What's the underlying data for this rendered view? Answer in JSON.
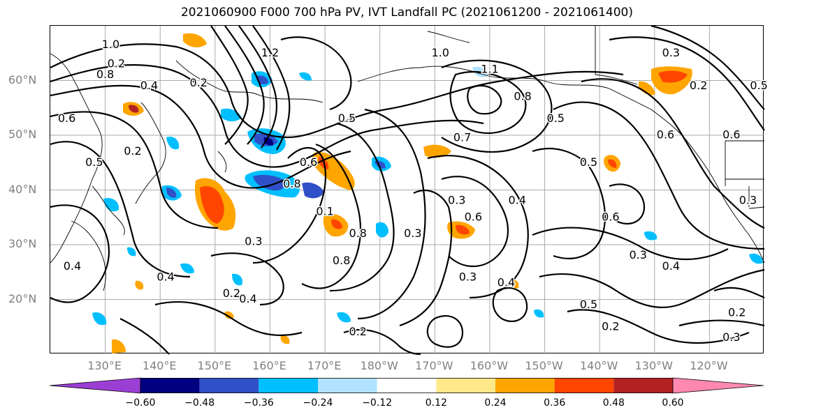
{
  "title": "2021060900 F000 700 hPa PV, IVT Landfall PC (2021061200 - 2021061400)",
  "lat_labels": [
    {
      "text": "60°N",
      "lat": 60
    },
    {
      "text": "50°N",
      "lat": 50
    },
    {
      "text": "40°N",
      "lat": 40
    },
    {
      "text": "30°N",
      "lat": 30
    },
    {
      "text": "20°N",
      "lat": 20
    }
  ],
  "lon_labels": [
    {
      "text": "130°E",
      "lon": 130
    },
    {
      "text": "140°E",
      "lon": 140
    },
    {
      "text": "150°E",
      "lon": 150
    },
    {
      "text": "160°E",
      "lon": 160
    },
    {
      "text": "170°E",
      "lon": 170
    },
    {
      "text": "180°W",
      "lon": 180
    },
    {
      "text": "170°W",
      "lon": 190
    },
    {
      "text": "160°W",
      "lon": 200
    },
    {
      "text": "150°W",
      "lon": 210
    },
    {
      "text": "140°W",
      "lon": 220
    },
    {
      "text": "130°W",
      "lon": 230
    },
    {
      "text": "120°W",
      "lon": 240
    }
  ],
  "map_extent": {
    "lon_min": 120,
    "lon_max": 250,
    "lat_min": 10,
    "lat_max": 70
  },
  "colorbar": {
    "colors": [
      "#9b3fd4",
      "#000080",
      "#3050c8",
      "#00bfff",
      "#b0e2ff",
      "#ffffff",
      "#ffe88a",
      "#ffa500",
      "#ff4500",
      "#b22222",
      "#ff88b0"
    ],
    "ticks": [
      "−0.60",
      "−0.48",
      "−0.36",
      "−0.24",
      "−0.12",
      "0.12",
      "0.24",
      "0.36",
      "0.48",
      "0.60"
    ]
  },
  "contour_labels": [
    {
      "text": "1.0",
      "lon": 131,
      "lat": 66.5
    },
    {
      "text": "0.2",
      "lon": 132,
      "lat": 63
    },
    {
      "text": "0.8",
      "lon": 130,
      "lat": 61
    },
    {
      "text": "0.4",
      "lon": 138,
      "lat": 59
    },
    {
      "text": "0.6",
      "lon": 123,
      "lat": 53
    },
    {
      "text": "0.5",
      "lon": 128,
      "lat": 45
    },
    {
      "text": "0.2",
      "lon": 135,
      "lat": 47
    },
    {
      "text": "0.2",
      "lon": 147,
      "lat": 59.5
    },
    {
      "text": "1.2",
      "lon": 160,
      "lat": 65
    },
    {
      "text": "0.5",
      "lon": 174,
      "lat": 53
    },
    {
      "text": "0.8",
      "lon": 164,
      "lat": 41
    },
    {
      "text": "0.6",
      "lon": 167,
      "lat": 45
    },
    {
      "text": "0.1",
      "lon": 170,
      "lat": 36
    },
    {
      "text": "0.8",
      "lon": 176,
      "lat": 32
    },
    {
      "text": "0.3",
      "lon": 157,
      "lat": 30.5
    },
    {
      "text": "0.8",
      "lon": 173,
      "lat": 27
    },
    {
      "text": "0.2",
      "lon": 153,
      "lat": 21
    },
    {
      "text": "0.4",
      "lon": 156,
      "lat": 20
    },
    {
      "text": "0.4",
      "lon": 124,
      "lat": 26
    },
    {
      "text": "0.4",
      "lon": 141,
      "lat": 24
    },
    {
      "text": "0.2",
      "lon": 176,
      "lat": 14
    },
    {
      "text": "1.0",
      "lon": 191,
      "lat": 65
    },
    {
      "text": "0.7",
      "lon": 195,
      "lat": 49.5
    },
    {
      "text": "1.1",
      "lon": 200,
      "lat": 62
    },
    {
      "text": "0.8",
      "lon": 206,
      "lat": 57
    },
    {
      "text": "0.3",
      "lon": 194,
      "lat": 38
    },
    {
      "text": "0.6",
      "lon": 197,
      "lat": 35
    },
    {
      "text": "0.3",
      "lon": 186,
      "lat": 32
    },
    {
      "text": "0.3",
      "lon": 196,
      "lat": 24
    },
    {
      "text": "0.4",
      "lon": 203,
      "lat": 23
    },
    {
      "text": "0.5",
      "lon": 212,
      "lat": 53
    },
    {
      "text": "0.4",
      "lon": 205,
      "lat": 38
    },
    {
      "text": "0.6",
      "lon": 222,
      "lat": 35
    },
    {
      "text": "0.3",
      "lon": 233,
      "lat": 65
    },
    {
      "text": "0.2",
      "lon": 238,
      "lat": 59
    },
    {
      "text": "0.5",
      "lon": 218,
      "lat": 45
    },
    {
      "text": "0.6",
      "lon": 232,
      "lat": 50
    },
    {
      "text": "0.3",
      "lon": 247,
      "lat": 38
    },
    {
      "text": "0.3",
      "lon": 227,
      "lat": 28
    },
    {
      "text": "0.4",
      "lon": 233,
      "lat": 26
    },
    {
      "text": "0.5",
      "lon": 218,
      "lat": 19
    },
    {
      "text": "0.2",
      "lon": 222,
      "lat": 15
    },
    {
      "text": "0.2",
      "lon": 245,
      "lat": 17.5
    },
    {
      "text": "0.3",
      "lon": 244,
      "lat": 13
    },
    {
      "text": "0.5",
      "lon": 249,
      "lat": 59
    },
    {
      "text": "0.6",
      "lon": 244,
      "lat": 50
    }
  ]
}
